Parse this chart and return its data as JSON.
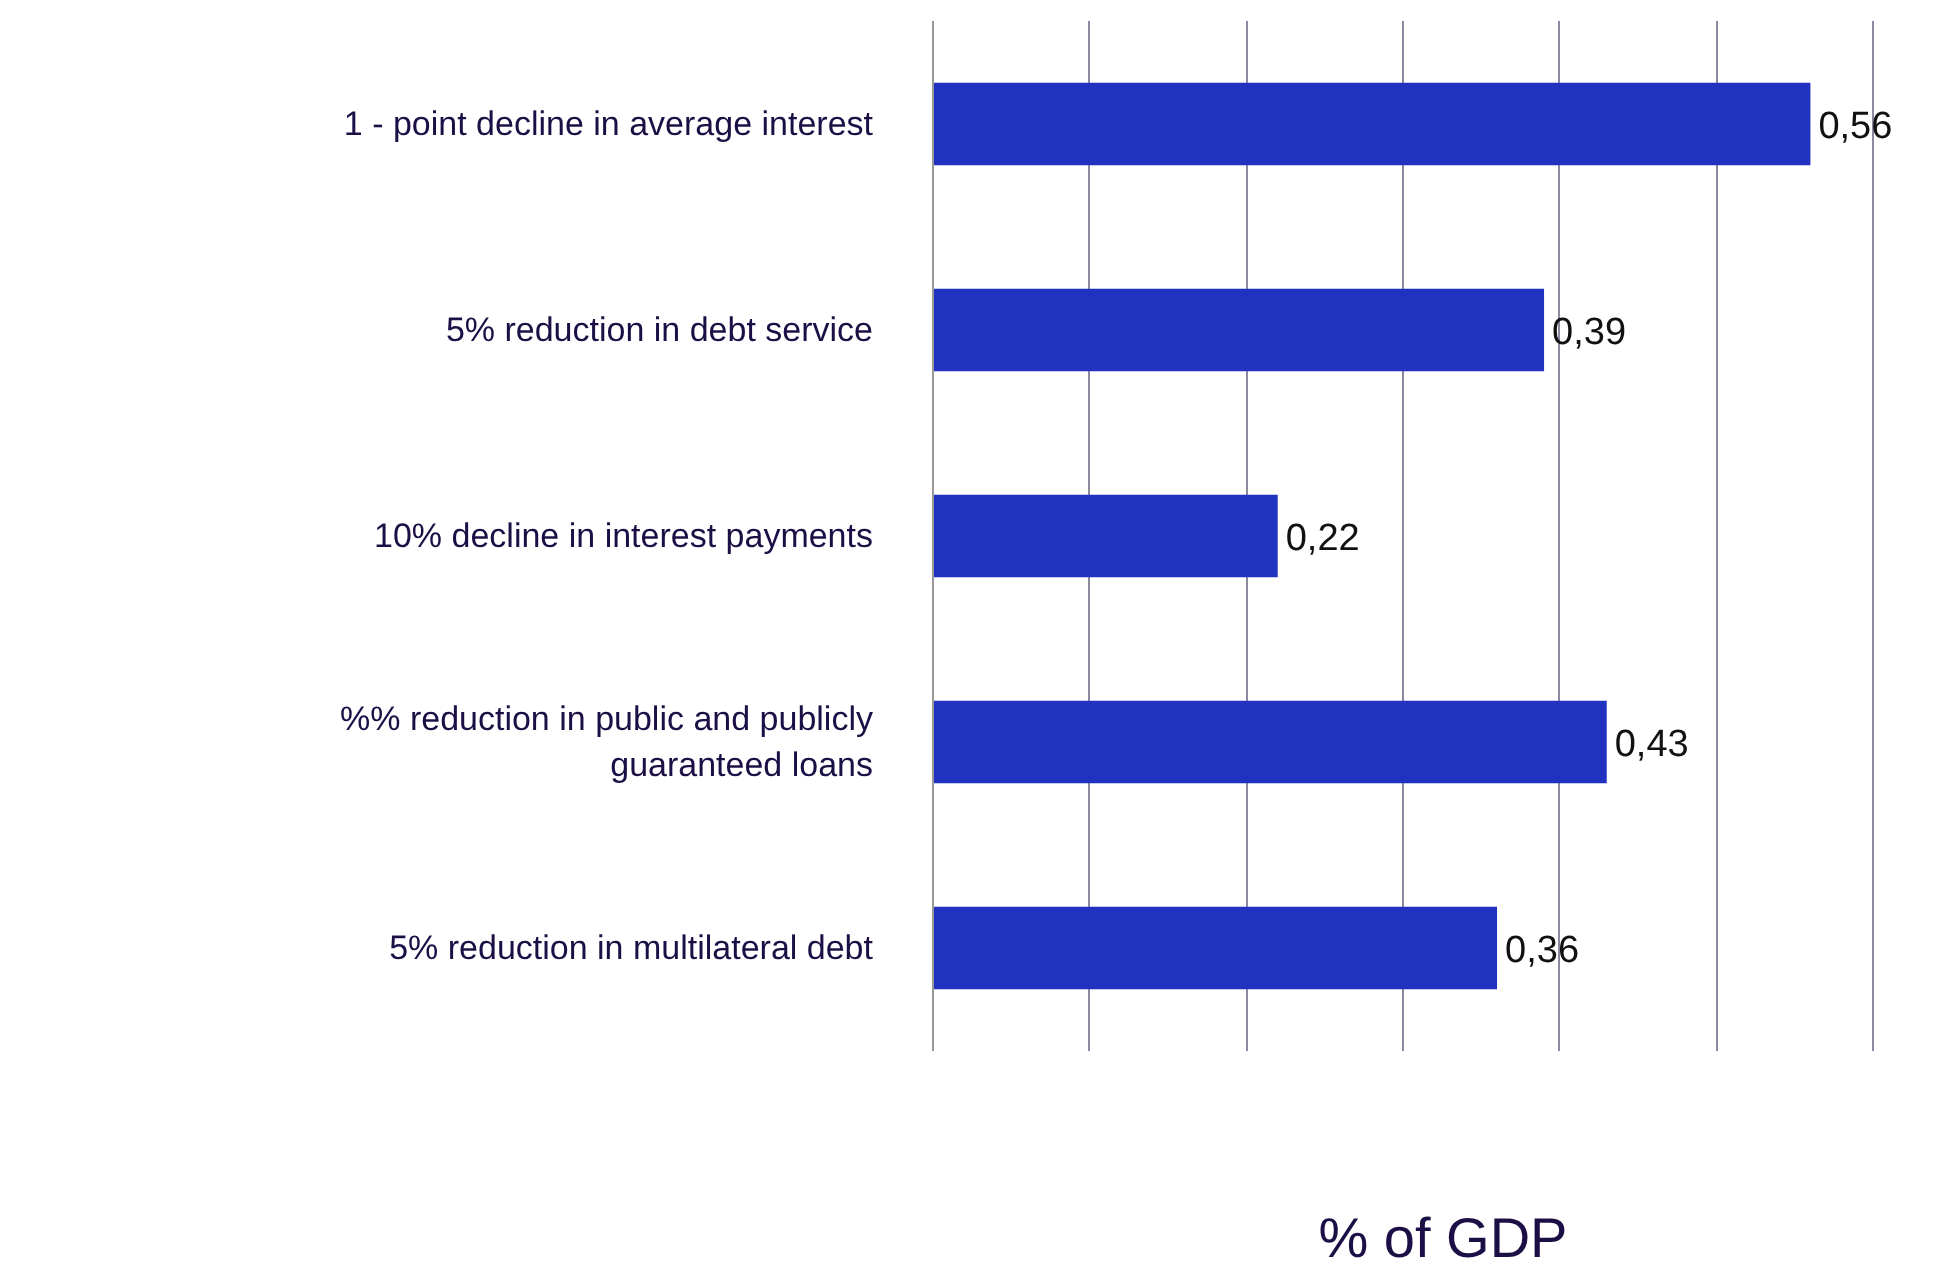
{
  "chart_data": {
    "type": "bar",
    "orientation": "horizontal",
    "xlabel": "% of GDP",
    "categories": [
      "1 - point decline in average interest",
      "5% reduction in debt service",
      "10% decline in interest payments",
      "%% reduction in public and publicly guaranteed loans",
      "5% reduction in multilateral debt"
    ],
    "values": [
      0.56,
      0.39,
      0.22,
      0.43,
      0.36
    ],
    "value_labels": [
      "0,56",
      "0,39",
      "0,22",
      "0,43",
      "0,36"
    ],
    "color": "#2131c0",
    "xlim": [
      0,
      0.6
    ],
    "xticks": [
      {
        "value": 0,
        "label": null
      },
      {
        "value": 0.1,
        "label": null
      },
      {
        "value": 0.2,
        "label": null
      },
      {
        "value": 0.3,
        "label": null
      },
      {
        "value": 0.4,
        "label": null
      },
      {
        "value": 0.5,
        "label": null
      },
      {
        "value": 0.6,
        "label": null
      }
    ],
    "grid": "x",
    "tick_labels": "y"
  }
}
